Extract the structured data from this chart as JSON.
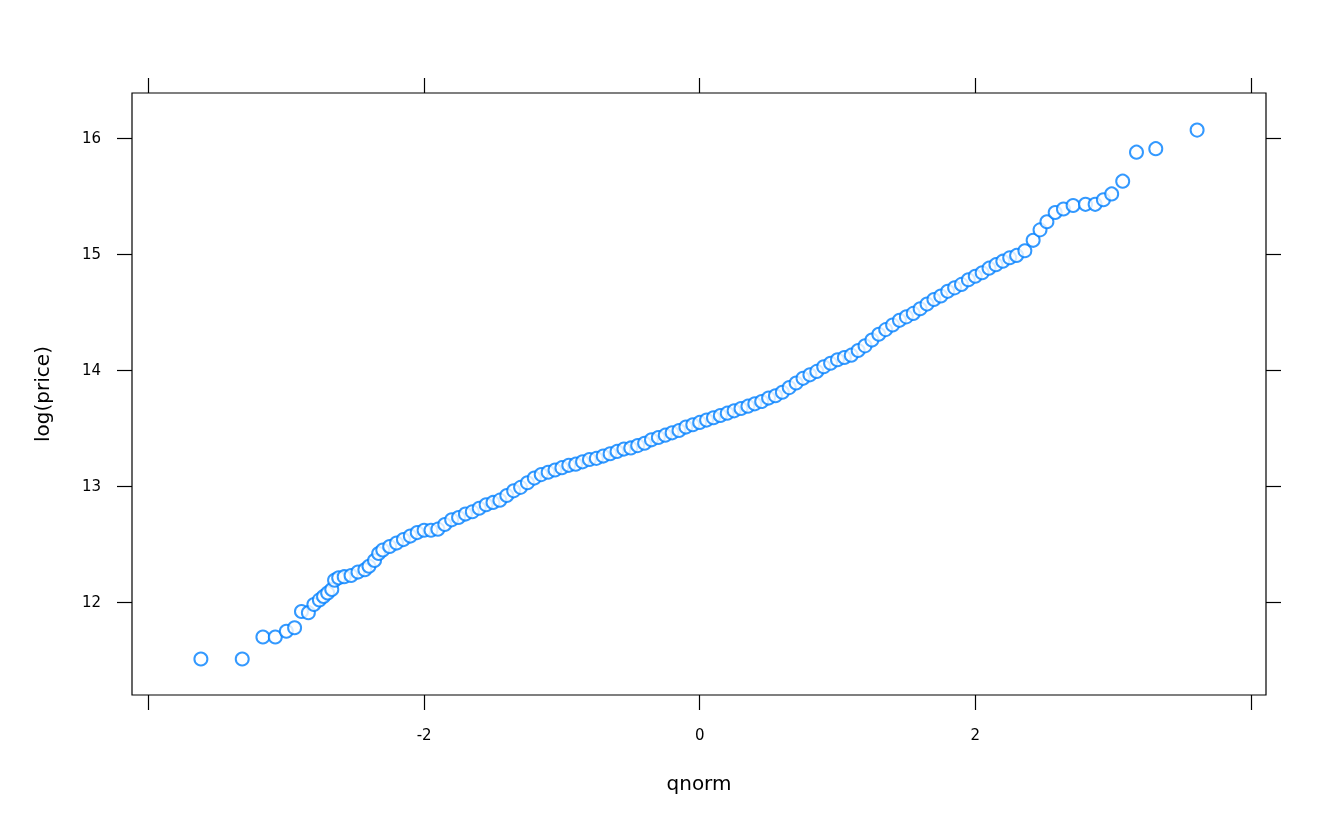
{
  "chart_data": {
    "type": "scatter",
    "xlabel": "qnorm",
    "ylabel": "log(price)",
    "color": "#0080ff",
    "marker": "circle",
    "grid": false,
    "xlim": [
      -4.12,
      4.11
    ],
    "xticks": [
      {
        "value": -4,
        "label": null
      },
      -2,
      0,
      2,
      {
        "value": 4,
        "label": null
      }
    ],
    "ylim": [
      11.2,
      16.39
    ],
    "yticks": [
      12,
      13,
      14,
      15,
      16
    ],
    "x": [
      -3.62,
      -3.32,
      -3.17,
      -3.08,
      -3.0,
      -2.94,
      -2.89,
      -2.84,
      -2.8,
      -2.76,
      -2.73,
      -2.7,
      -2.67,
      -2.65,
      -2.62,
      -2.58,
      -2.53,
      -2.48,
      -2.43,
      -2.4,
      -2.36,
      -2.33,
      -2.3,
      -2.25,
      -2.2,
      -2.15,
      -2.1,
      -2.05,
      -2.0,
      -1.95,
      -1.9,
      -1.85,
      -1.8,
      -1.75,
      -1.7,
      -1.65,
      -1.6,
      -1.55,
      -1.5,
      -1.45,
      -1.4,
      -1.35,
      -1.3,
      -1.25,
      -1.2,
      -1.15,
      -1.1,
      -1.05,
      -1.0,
      -0.95,
      -0.9,
      -0.85,
      -0.8,
      -0.75,
      -0.7,
      -0.65,
      -0.6,
      -0.55,
      -0.5,
      -0.45,
      -0.4,
      -0.35,
      -0.3,
      -0.25,
      -0.2,
      -0.15,
      -0.1,
      -0.05,
      0.0,
      0.05,
      0.1,
      0.15,
      0.2,
      0.25,
      0.3,
      0.35,
      0.4,
      0.45,
      0.5,
      0.55,
      0.6,
      0.65,
      0.7,
      0.75,
      0.8,
      0.85,
      0.9,
      0.95,
      1.0,
      1.05,
      1.1,
      1.15,
      1.2,
      1.25,
      1.3,
      1.35,
      1.4,
      1.45,
      1.5,
      1.55,
      1.6,
      1.65,
      1.7,
      1.75,
      1.8,
      1.85,
      1.9,
      1.95,
      2.0,
      2.05,
      2.1,
      2.15,
      2.2,
      2.25,
      2.3,
      2.36,
      2.42,
      2.47,
      2.52,
      2.58,
      2.64,
      2.71,
      2.8,
      2.87,
      2.93,
      2.99,
      3.07,
      3.17,
      3.31,
      3.61
    ],
    "values": [
      11.51,
      11.51,
      11.7,
      11.7,
      11.75,
      11.78,
      11.92,
      11.91,
      11.98,
      12.02,
      12.05,
      12.08,
      12.11,
      12.19,
      12.21,
      12.22,
      12.23,
      12.26,
      12.28,
      12.31,
      12.36,
      12.42,
      12.45,
      12.48,
      12.51,
      12.54,
      12.57,
      12.6,
      12.62,
      12.62,
      12.63,
      12.67,
      12.71,
      12.73,
      12.76,
      12.78,
      12.81,
      12.84,
      12.86,
      12.88,
      12.92,
      12.96,
      12.99,
      13.03,
      13.07,
      13.1,
      13.12,
      13.14,
      13.16,
      13.18,
      13.19,
      13.21,
      13.23,
      13.24,
      13.26,
      13.28,
      13.3,
      13.32,
      13.33,
      13.35,
      13.37,
      13.4,
      13.42,
      13.44,
      13.46,
      13.48,
      13.51,
      13.53,
      13.55,
      13.57,
      13.59,
      13.61,
      13.63,
      13.65,
      13.67,
      13.69,
      13.71,
      13.73,
      13.76,
      13.78,
      13.81,
      13.85,
      13.89,
      13.93,
      13.96,
      13.99,
      14.03,
      14.06,
      14.09,
      14.11,
      14.13,
      14.17,
      14.21,
      14.26,
      14.31,
      14.35,
      14.39,
      14.43,
      14.46,
      14.49,
      14.53,
      14.57,
      14.61,
      14.64,
      14.68,
      14.71,
      14.74,
      14.78,
      14.81,
      14.84,
      14.88,
      14.91,
      14.94,
      14.97,
      14.99,
      15.03,
      15.12,
      15.21,
      15.28,
      15.36,
      15.39,
      15.42,
      15.43,
      15.43,
      15.47,
      15.52,
      15.63,
      15.88,
      15.91,
      16.07
    ]
  }
}
